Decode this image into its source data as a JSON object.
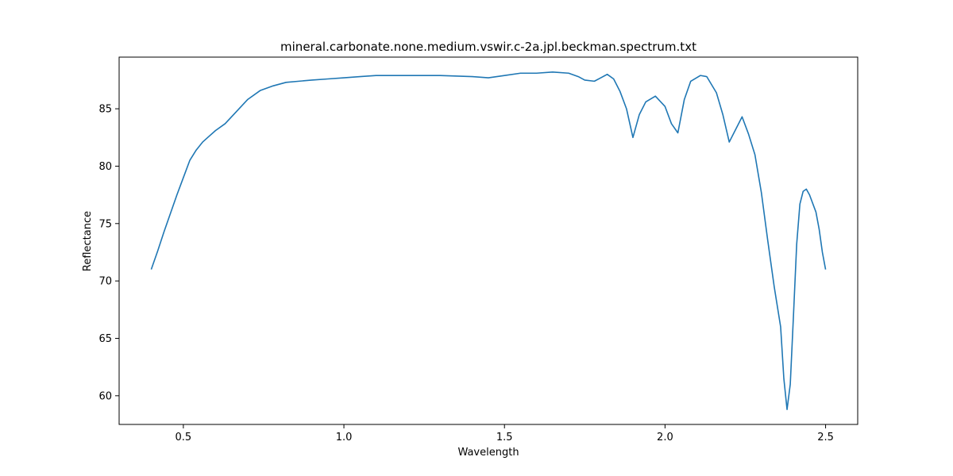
{
  "chart_data": {
    "type": "line",
    "title": "mineral.carbonate.none.medium.vswir.c-2a.jpl.beckman.spectrum.txt",
    "xlabel": "Wavelength",
    "ylabel": "Reflectance",
    "xlim": [
      0.3,
      2.6
    ],
    "ylim": [
      57.5,
      89.5
    ],
    "xticks": [
      0.5,
      1.0,
      1.5,
      2.0,
      2.5
    ],
    "xtick_labels": [
      "0.5",
      "1.0",
      "1.5",
      "2.0",
      "2.5"
    ],
    "yticks": [
      60,
      65,
      70,
      75,
      80,
      85
    ],
    "ytick_labels": [
      "60",
      "65",
      "70",
      "75",
      "80",
      "85"
    ],
    "grid": false,
    "line_color": "#1f77b4",
    "series": [
      {
        "x": [
          0.4,
          0.42,
          0.44,
          0.46,
          0.48,
          0.5,
          0.52,
          0.54,
          0.56,
          0.58,
          0.6,
          0.63,
          0.66,
          0.7,
          0.74,
          0.78,
          0.82,
          0.86,
          0.9,
          0.95,
          1.0,
          1.05,
          1.1,
          1.2,
          1.3,
          1.4,
          1.45,
          1.5,
          1.55,
          1.6,
          1.65,
          1.7,
          1.73,
          1.75,
          1.78,
          1.8,
          1.82,
          1.84,
          1.86,
          1.88,
          1.9,
          1.92,
          1.94,
          1.97,
          2.0,
          2.02,
          2.04,
          2.06,
          2.08,
          2.11,
          2.13,
          2.16,
          2.18,
          2.2,
          2.22,
          2.24,
          2.26,
          2.28,
          2.3,
          2.32,
          2.34,
          2.36,
          2.37,
          2.38,
          2.39,
          2.4,
          2.41,
          2.42,
          2.43,
          2.44,
          2.45,
          2.47,
          2.48,
          2.49,
          2.5
        ],
        "y": [
          71.0,
          72.6,
          74.3,
          75.9,
          77.5,
          79.0,
          80.5,
          81.4,
          82.1,
          82.6,
          83.1,
          83.7,
          84.6,
          85.8,
          86.6,
          87.0,
          87.3,
          87.4,
          87.5,
          87.6,
          87.7,
          87.8,
          87.9,
          87.9,
          87.9,
          87.8,
          87.7,
          87.9,
          88.1,
          88.1,
          88.2,
          88.1,
          87.8,
          87.5,
          87.4,
          87.7,
          88.0,
          87.6,
          86.5,
          85.0,
          82.5,
          84.5,
          85.6,
          86.1,
          85.2,
          83.7,
          82.9,
          85.8,
          87.4,
          87.9,
          87.8,
          86.4,
          84.5,
          82.1,
          83.2,
          84.3,
          82.8,
          81.0,
          77.7,
          73.5,
          69.5,
          66.0,
          61.5,
          58.8,
          61.0,
          67.0,
          73.2,
          76.7,
          77.8,
          78.0,
          77.5,
          76.0,
          74.5,
          72.5,
          71.0
        ]
      }
    ]
  }
}
